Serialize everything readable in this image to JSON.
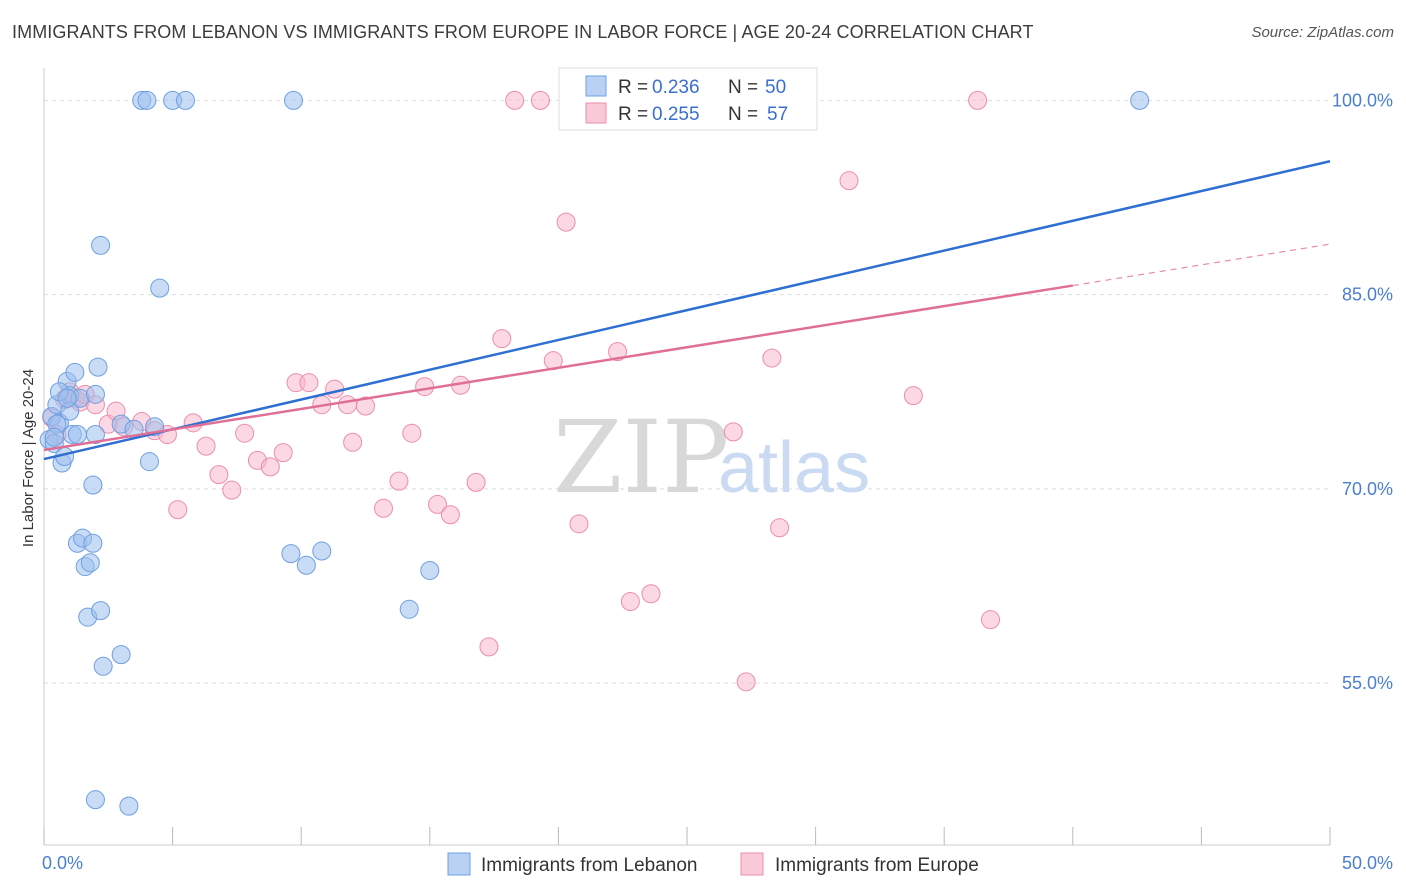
{
  "header": {
    "title": "IMMIGRANTS FROM LEBANON VS IMMIGRANTS FROM EUROPE IN LABOR FORCE | AGE 20-24 CORRELATION CHART",
    "source": "Source: ZipAtlas.com"
  },
  "watermark": {
    "zip": "ZIP",
    "atlas": "atlas"
  },
  "chart_data": {
    "type": "scatter",
    "ylabel": "In Labor Force | Age 20-24",
    "xlim": [
      0,
      50
    ],
    "ylim": [
      42.5,
      102.5
    ],
    "x_tick_labels": [
      {
        "value": 0,
        "label": "0.0%"
      },
      {
        "value": 50,
        "label": "50.0%"
      }
    ],
    "y_tick_labels": [
      {
        "value": 100,
        "label": "100.0%"
      },
      {
        "value": 85,
        "label": "85.0%"
      },
      {
        "value": 70,
        "label": "70.0%"
      },
      {
        "value": 55,
        "label": "55.0%"
      }
    ],
    "gridlines_y": [
      55,
      70,
      85,
      100
    ],
    "legend": {
      "placement": "top-center",
      "entries": [
        {
          "r_label": "R =",
          "r_value": "0.236",
          "n_label": "N =",
          "n_value": "50"
        },
        {
          "r_label": "R =",
          "r_value": "0.255",
          "n_label": "N =",
          "n_value": "57"
        }
      ]
    },
    "series": [
      {
        "name": "Immigrants from Lebanon",
        "color": "#9dc0ee",
        "stroke": "#6f9fe0",
        "trend_color": "#2e6fd1",
        "trend": {
          "x0": 0,
          "y0": 72.3,
          "x1": 50,
          "y1": 95.3
        },
        "points": [
          [
            0.2,
            73.8
          ],
          [
            0.3,
            75.6
          ],
          [
            0.4,
            73.5
          ],
          [
            0.5,
            76.5
          ],
          [
            0.6,
            75.1
          ],
          [
            0.7,
            72.0
          ],
          [
            0.8,
            72.5
          ],
          [
            0.9,
            78.3
          ],
          [
            1.0,
            77.2
          ],
          [
            1.1,
            74.2
          ],
          [
            1.2,
            79.0
          ],
          [
            1.3,
            74.2
          ],
          [
            1.4,
            77.0
          ],
          [
            1.3,
            65.8
          ],
          [
            1.5,
            66.2
          ],
          [
            1.6,
            64.0
          ],
          [
            1.7,
            60.1
          ],
          [
            1.8,
            64.3
          ],
          [
            1.9,
            65.8
          ],
          [
            2.0,
            46.0
          ],
          [
            1.9,
            70.3
          ],
          [
            2.0,
            74.2
          ],
          [
            2.1,
            79.4
          ],
          [
            2.2,
            88.8
          ],
          [
            2.2,
            60.6
          ],
          [
            2.3,
            56.3
          ],
          [
            2.0,
            77.3
          ],
          [
            3.0,
            57.2
          ],
          [
            3.0,
            75.0
          ],
          [
            3.3,
            45.5
          ],
          [
            3.5,
            74.6
          ],
          [
            3.8,
            100.0
          ],
          [
            4.0,
            100.0
          ],
          [
            4.1,
            72.1
          ],
          [
            4.3,
            74.8
          ],
          [
            4.5,
            85.5
          ],
          [
            5.0,
            100.0
          ],
          [
            5.5,
            100.0
          ],
          [
            9.6,
            65.0
          ],
          [
            9.7,
            100.0
          ],
          [
            10.2,
            64.1
          ],
          [
            10.8,
            65.2
          ],
          [
            14.2,
            60.7
          ],
          [
            15.0,
            63.7
          ],
          [
            42.6,
            100.0
          ],
          [
            0.5,
            75.0
          ],
          [
            0.6,
            77.5
          ],
          [
            1.0,
            76.0
          ],
          [
            0.4,
            74.0
          ],
          [
            0.9,
            77.0
          ]
        ]
      },
      {
        "name": "Immigrants from Europe",
        "color": "#f7b8cc",
        "stroke": "#ec8eab",
        "trend_color": "#e06f97",
        "trend": {
          "x0": 0,
          "y0": 73.0,
          "x1": 40,
          "y1": 85.7
        },
        "trend_dashed_to": {
          "x": 50,
          "y": 88.9
        },
        "points": [
          [
            0.3,
            75.5
          ],
          [
            0.5,
            74.2
          ],
          [
            0.8,
            76.9
          ],
          [
            1.0,
            77.5
          ],
          [
            1.2,
            77.0
          ],
          [
            1.4,
            76.7
          ],
          [
            1.6,
            77.3
          ],
          [
            2.5,
            75.0
          ],
          [
            2.8,
            76.0
          ],
          [
            3.1,
            74.8
          ],
          [
            3.8,
            75.2
          ],
          [
            4.3,
            74.5
          ],
          [
            4.8,
            74.2
          ],
          [
            5.2,
            68.4
          ],
          [
            5.8,
            75.1
          ],
          [
            6.3,
            73.3
          ],
          [
            6.8,
            71.1
          ],
          [
            7.3,
            69.9
          ],
          [
            7.8,
            74.3
          ],
          [
            8.3,
            72.2
          ],
          [
            8.8,
            71.7
          ],
          [
            9.3,
            72.8
          ],
          [
            9.8,
            78.2
          ],
          [
            10.3,
            78.2
          ],
          [
            10.8,
            76.5
          ],
          [
            11.3,
            77.7
          ],
          [
            11.8,
            76.5
          ],
          [
            12.0,
            73.6
          ],
          [
            12.5,
            76.4
          ],
          [
            13.2,
            68.5
          ],
          [
            13.8,
            70.6
          ],
          [
            14.3,
            74.3
          ],
          [
            14.8,
            77.9
          ],
          [
            15.3,
            68.8
          ],
          [
            15.8,
            68.0
          ],
          [
            16.2,
            78.0
          ],
          [
            16.8,
            70.5
          ],
          [
            17.3,
            57.8
          ],
          [
            17.8,
            81.6
          ],
          [
            18.3,
            100.0
          ],
          [
            19.3,
            100.0
          ],
          [
            19.8,
            79.9
          ],
          [
            20.3,
            90.6
          ],
          [
            20.8,
            67.3
          ],
          [
            22.3,
            80.6
          ],
          [
            22.8,
            61.3
          ],
          [
            23.6,
            61.9
          ],
          [
            24.0,
            100.0
          ],
          [
            26.8,
            74.4
          ],
          [
            27.3,
            55.1
          ],
          [
            28.3,
            80.1
          ],
          [
            28.6,
            67.0
          ],
          [
            31.3,
            93.8
          ],
          [
            33.8,
            77.2
          ],
          [
            36.3,
            100.0
          ],
          [
            36.8,
            59.9
          ],
          [
            2.0,
            76.5
          ]
        ]
      }
    ]
  },
  "bottom_legend": {
    "items": [
      {
        "label": "Immigrants from Lebanon"
      },
      {
        "label": "Immigrants from Europe"
      }
    ]
  }
}
